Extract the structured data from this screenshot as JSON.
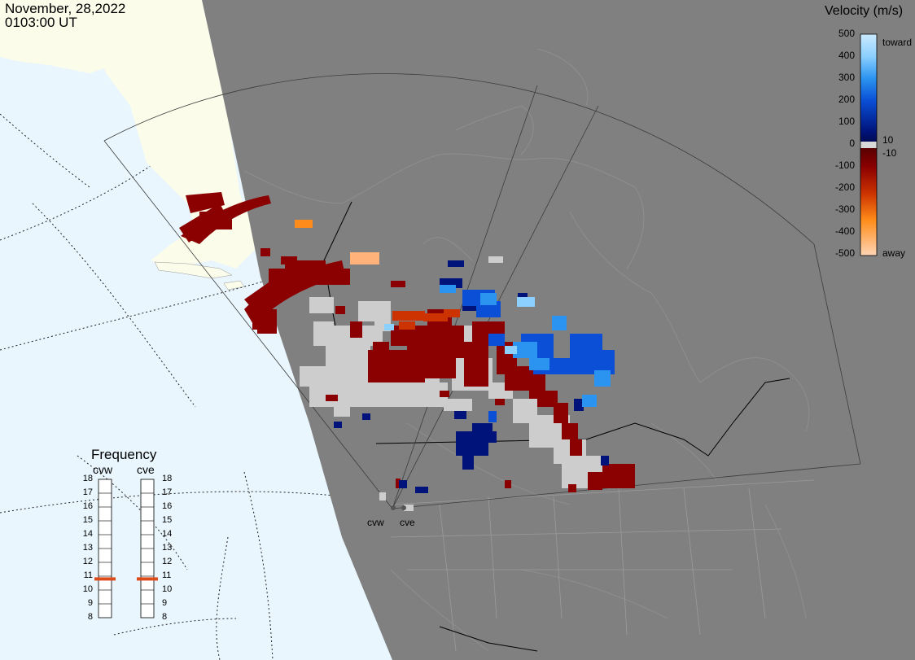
{
  "header": {
    "date": "November, 28,2022",
    "time": "0103:00 UT"
  },
  "colors": {
    "ocean": "#e9f6fe",
    "land_day": "#fbfcea",
    "night_shade": "#808080",
    "ground_scatter": "#cdcdcd",
    "frequency_marker": "#dd4b1b"
  },
  "velocity_legend": {
    "title": "Velocity (m/s)",
    "labels": [
      "500",
      "400",
      "300",
      "200",
      "100",
      "0",
      "-100",
      "-200",
      "-300",
      "-400",
      "-500"
    ],
    "toward_label": "toward",
    "away_label": "away",
    "threshold_pos": "10",
    "threshold_neg": "-10"
  },
  "frequency_panel": {
    "title": "Frequency",
    "radars": [
      {
        "name": "cvw",
        "current_mhz": 10.8
      },
      {
        "name": "cve",
        "current_mhz": 10.8
      }
    ],
    "ticks": [
      "18",
      "17",
      "16",
      "15",
      "14",
      "13",
      "12",
      "11",
      "10",
      "9",
      "8"
    ]
  },
  "sites": [
    {
      "name": "cvw",
      "icon": "radar-site-icon"
    },
    {
      "name": "cve",
      "icon": "radar-site-icon"
    }
  ]
}
